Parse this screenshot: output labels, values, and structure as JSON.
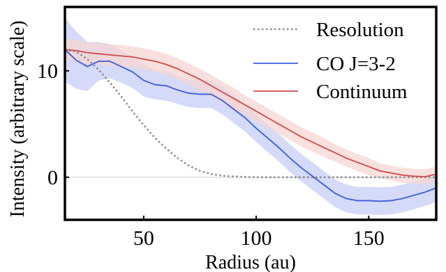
{
  "chart_data": {
    "type": "line",
    "title": "",
    "xlabel": "Radius (au)",
    "ylabel": "Intensity (arbitrary scale)",
    "xlim": [
      15,
      180
    ],
    "ylim": [
      -4,
      16
    ],
    "xticks": [
      50,
      100,
      150
    ],
    "yticks": [
      0,
      10
    ],
    "zero_line": true,
    "grid": false,
    "legend_position": "top-right",
    "series": [
      {
        "name": "Resolution",
        "style": "dotted",
        "color": "#8c8c8c",
        "band": false,
        "x": [
          15,
          20,
          25,
          30,
          35,
          40,
          45,
          50,
          55,
          60,
          65,
          70,
          75,
          80,
          85,
          90,
          95,
          100,
          110,
          120,
          130,
          140,
          150,
          160,
          170,
          180
        ],
        "y": [
          12.0,
          11.8,
          11.1,
          10.1,
          8.9,
          7.6,
          6.2,
          4.9,
          3.7,
          2.7,
          1.8,
          1.1,
          0.6,
          0.3,
          0.15,
          0.07,
          0.03,
          0.0,
          0.0,
          0.0,
          0.0,
          0.0,
          0.0,
          0.0,
          0.0,
          0.0
        ]
      },
      {
        "name": "CO J=3-2",
        "style": "solid",
        "color": "#3b5bdb",
        "band": true,
        "band_color": "#c5cdf4",
        "x": [
          15,
          20,
          25,
          30,
          35,
          40,
          45,
          50,
          55,
          60,
          65,
          70,
          75,
          80,
          85,
          90,
          95,
          100,
          105,
          110,
          115,
          120,
          125,
          130,
          135,
          140,
          145,
          150,
          155,
          160,
          165,
          170,
          175,
          180
        ],
        "y": [
          12.0,
          11.0,
          10.4,
          10.9,
          10.9,
          10.4,
          9.9,
          9.1,
          8.7,
          8.6,
          8.2,
          7.9,
          7.8,
          7.8,
          7.2,
          6.4,
          5.6,
          4.6,
          3.7,
          2.8,
          1.8,
          0.9,
          0.1,
          -0.7,
          -1.5,
          -2.0,
          -2.2,
          -2.2,
          -2.25,
          -2.2,
          -2.0,
          -1.7,
          -1.4,
          -1.0
        ],
        "err": [
          3.0,
          2.7,
          2.3,
          1.8,
          1.6,
          1.5,
          1.5,
          1.5,
          1.4,
          1.4,
          1.3,
          1.3,
          1.3,
          1.3,
          1.3,
          1.3,
          1.3,
          1.3,
          1.3,
          1.3,
          1.3,
          1.3,
          1.3,
          1.3,
          1.3,
          1.3,
          1.3,
          1.3,
          1.3,
          1.3,
          1.3,
          1.3,
          1.3,
          1.3
        ]
      },
      {
        "name": "Continuum",
        "style": "solid",
        "color": "#d04a4a",
        "band": true,
        "band_color": "#f6d6d3",
        "x": [
          15,
          20,
          25,
          30,
          35,
          40,
          45,
          50,
          55,
          60,
          65,
          70,
          75,
          80,
          85,
          90,
          95,
          100,
          105,
          110,
          115,
          120,
          125,
          130,
          135,
          140,
          145,
          150,
          155,
          160,
          165,
          170,
          175,
          180
        ],
        "y": [
          12.0,
          11.9,
          11.7,
          11.6,
          11.5,
          11.4,
          11.3,
          11.1,
          10.9,
          10.6,
          10.2,
          9.7,
          9.2,
          8.6,
          8.0,
          7.4,
          6.8,
          6.2,
          5.6,
          5.0,
          4.4,
          3.8,
          3.3,
          2.8,
          2.3,
          1.8,
          1.4,
          1.0,
          0.6,
          0.4,
          0.2,
          0.1,
          0.05,
          0.3
        ],
        "err": [
          1.0,
          1.0,
          1.0,
          1.0,
          1.0,
          1.0,
          1.0,
          1.0,
          1.0,
          1.0,
          1.0,
          1.0,
          1.0,
          1.0,
          1.0,
          1.0,
          0.9,
          0.9,
          0.9,
          0.9,
          0.9,
          0.9,
          0.9,
          0.9,
          0.8,
          0.8,
          0.8,
          0.8,
          0.7,
          0.7,
          0.7,
          0.7,
          0.7,
          0.7
        ]
      }
    ]
  }
}
